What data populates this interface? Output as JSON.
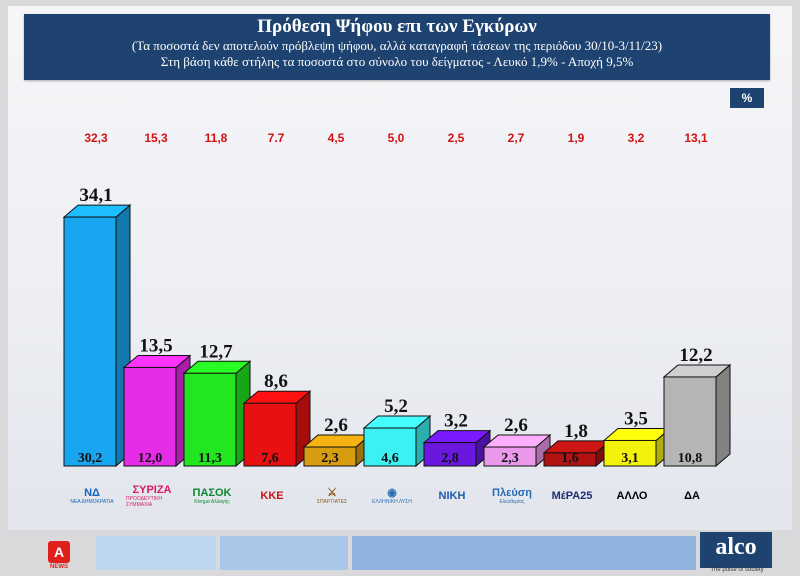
{
  "header": {
    "title": "Πρόθεση Ψήφου επι των Εγκύρων",
    "subtitle1": "(Τα ποσοστά δεν αποτελούν πρόβλεψη ψήφου, αλλά καταγραφή τάσεων της περιόδου  30/10-3/11/23)",
    "subtitle2": "Στη βάση κάθε στήλης τα ποσοστά στο σύνολο του δείγματος - Λευκό 1,9% - Αποχή 9,5%"
  },
  "unit_badge": "%",
  "chart_data": {
    "type": "bar",
    "categories": [
      "ΝΔ",
      "ΣΥΡΙΖΑ",
      "ΠΑΣΟΚ",
      "ΚΚΕ",
      "Σπαρτιάτες",
      "Ελληνική Λύση",
      "Νίκη",
      "Πλεύση Ελευθερίας",
      "ΜέΡΑ25",
      "ΑΛΛΟ",
      "ΔΑ"
    ],
    "series": [
      {
        "values": [
          34.1,
          13.5,
          12.7,
          8.6,
          2.6,
          5.2,
          3.2,
          2.6,
          1.8,
          3.5,
          12.2
        ],
        "labels": [
          "34,1",
          "13,5",
          "12,7",
          "8,6",
          "2,6",
          "5,2",
          "3,2",
          "2,6",
          "1,8",
          "3,5",
          "12,2"
        ]
      },
      {
        "values": [
          30.2,
          12.0,
          11.3,
          7.6,
          2.3,
          4.6,
          2.8,
          2.3,
          1.6,
          3.1,
          10.8
        ],
        "labels": [
          "30,2",
          "12,0",
          "11,3",
          "7,6",
          "2,3",
          "4,6",
          "2,8",
          "2,3",
          "1,6",
          "3,1",
          "10,8"
        ]
      },
      {
        "values": [
          32.3,
          15.3,
          11.8,
          7.7,
          4.5,
          5.0,
          2.5,
          2.7,
          1.9,
          3.2,
          13.1
        ],
        "labels": [
          "32,3",
          "15,3",
          "11,8",
          "7.7",
          "4,5",
          "5,0",
          "2,5",
          "2,7",
          "1,9",
          "3,2",
          "13,1"
        ]
      }
    ],
    "colors": [
      "#19a6f0",
      "#e52ce6",
      "#22e61f",
      "#e81010",
      "#d79c0f",
      "#3cf1f1",
      "#6a17e0",
      "#e998ea",
      "#b31212",
      "#f2f20c",
      "#b5b5b5"
    ],
    "ylim": [
      0,
      40
    ]
  },
  "logos": [
    {
      "main": "ΝΔ",
      "sub": "ΝΕΑ ΔΗΜΟΚΡΑΤΙΑ",
      "color": "#1565b8"
    },
    {
      "main": "ΣΥΡΙΖΑ",
      "sub": "ΠΡΟΟΔΕΥΤΙΚΗ ΣΥΜΜΑΧΙΑ",
      "color": "#d81b60"
    },
    {
      "main": "ΠΑΣΟΚ",
      "sub": "Κίνημα Αλλαγής",
      "color": "#0a8a2e"
    },
    {
      "main": "ΚΚΕ",
      "sub": "",
      "color": "#c8151b"
    },
    {
      "main": "⚔",
      "sub": "ΣΠΑΡΤΙΑΤΕΣ",
      "color": "#8a5a10"
    },
    {
      "main": "◉",
      "sub": "ΕΛΛΗΝΙΚΗ ΛΥΣΗ",
      "color": "#2a6fb5"
    },
    {
      "main": "ΝΙΚΗ",
      "sub": "",
      "color": "#1f5bb0"
    },
    {
      "main": "Πλεύση",
      "sub": "Ελευθερίας",
      "color": "#2b6cb0"
    },
    {
      "main": "ΜέΡΑ25",
      "sub": "",
      "color": "#1c2e73"
    },
    {
      "main": "ΑΛΛΟ",
      "sub": "",
      "color": "#000000"
    },
    {
      "main": "ΔΑ",
      "sub": "",
      "color": "#000000"
    }
  ],
  "footer": {
    "channel_mark": "Α",
    "channel_sub": "NEWS",
    "brand": "alco",
    "brand_tagline": "The pulse of society"
  }
}
